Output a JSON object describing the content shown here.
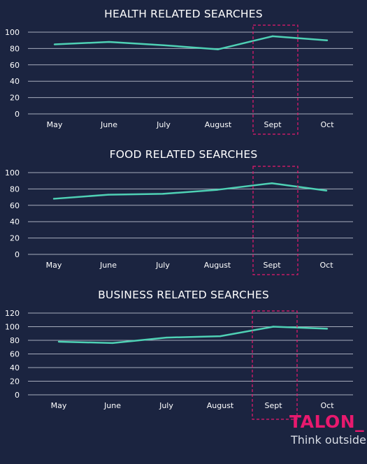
{
  "chart_data": [
    {
      "type": "line",
      "title": "HEALTH RELATED SEARCHES",
      "categories": [
        "May",
        "June",
        "July",
        "August",
        "Sept",
        "Oct"
      ],
      "values": [
        85,
        88,
        84,
        79,
        95,
        90
      ],
      "ylim": [
        0,
        100
      ],
      "yticks": [
        "0",
        "20",
        "40",
        "60",
        "80",
        "100"
      ],
      "grid": true,
      "highlight_category": "Sept"
    },
    {
      "type": "line",
      "title": "FOOD RELATED SEARCHES",
      "categories": [
        "May",
        "June",
        "July",
        "August",
        "Sept",
        "Oct"
      ],
      "values": [
        68,
        73,
        74,
        79,
        87,
        78
      ],
      "ylim": [
        0,
        100
      ],
      "yticks": [
        "0",
        "20",
        "40",
        "60",
        "80",
        "100"
      ],
      "grid": true,
      "highlight_category": "Sept"
    },
    {
      "type": "line",
      "title": "BUSINESS RELATED SEARCHES",
      "categories": [
        "May",
        "June",
        "July",
        "August",
        "Sept",
        "Oct"
      ],
      "values": [
        78,
        76,
        84,
        86,
        100,
        97
      ],
      "ylim": [
        0,
        120
      ],
      "yticks": [
        "0",
        "20",
        "40",
        "60",
        "80",
        "100",
        "120"
      ],
      "grid": true,
      "highlight_category": "Sept"
    }
  ],
  "colors": {
    "background": "#1b2440",
    "line": "#4fd1b5",
    "grid": "#c9cfdc",
    "highlight_box": "#e8196e",
    "brand": "#e8196e"
  },
  "brand": {
    "logo_text": "TALON_",
    "tagline": "Think outside"
  }
}
